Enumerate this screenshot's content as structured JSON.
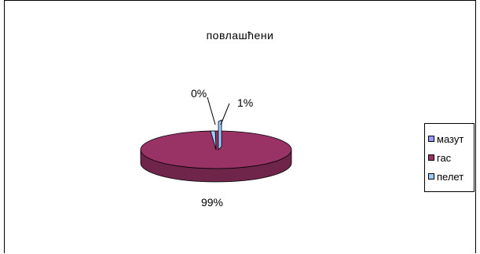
{
  "chart_data": {
    "type": "pie",
    "title": "повлашћени",
    "three_d": true,
    "legend_position": "right",
    "categories": [
      "мазут",
      "гас",
      "пелет"
    ],
    "values": [
      0,
      99,
      1
    ],
    "value_labels": [
      "0%",
      "99%",
      "1%"
    ],
    "colors": [
      "#9999ff",
      "#993366",
      "#99ccff"
    ]
  }
}
